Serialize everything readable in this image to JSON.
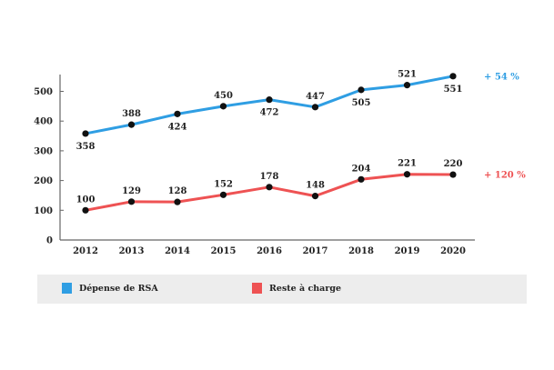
{
  "chart_data": {
    "type": "line",
    "title": "",
    "xlabel": "",
    "ylabel": "",
    "x": [
      "2012",
      "2013",
      "2014",
      "2015",
      "2016",
      "2017",
      "2018",
      "2019",
      "2020"
    ],
    "ylim": [
      0,
      550
    ],
    "yticks": [
      0,
      100,
      200,
      300,
      400,
      500
    ],
    "ytick_labels": [
      "0",
      "100",
      "200",
      "300",
      "400",
      "500"
    ],
    "grid": false,
    "legend_position": "bottom",
    "series": [
      {
        "name": "Dépense de RSA",
        "color": "#2f9ee3",
        "values": [
          358,
          388,
          424,
          450,
          472,
          447,
          505,
          521,
          551
        ],
        "labels": [
          "358",
          "388",
          "424",
          "450",
          "472",
          "447",
          "505",
          "521",
          "551"
        ],
        "label_pos": [
          "below",
          "above",
          "below",
          "above",
          "below",
          "above",
          "below",
          "above",
          "below"
        ],
        "annotation": "+ 54 %"
      },
      {
        "name": "Reste à charge",
        "color": "#ee5253",
        "values": [
          100,
          129,
          128,
          152,
          178,
          148,
          204,
          221,
          220
        ],
        "labels": [
          "100",
          "129",
          "128",
          "152",
          "178",
          "148",
          "204",
          "221",
          "220"
        ],
        "label_pos": [
          "above",
          "above",
          "above",
          "above",
          "above",
          "above",
          "above",
          "above",
          "above"
        ],
        "annotation": "+ 120 %"
      }
    ]
  },
  "legend": {
    "items": [
      {
        "label": "Dépense de RSA",
        "color": "#2f9ee3"
      },
      {
        "label": "Reste à charge",
        "color": "#ee5253"
      }
    ],
    "background": "#ededed"
  }
}
